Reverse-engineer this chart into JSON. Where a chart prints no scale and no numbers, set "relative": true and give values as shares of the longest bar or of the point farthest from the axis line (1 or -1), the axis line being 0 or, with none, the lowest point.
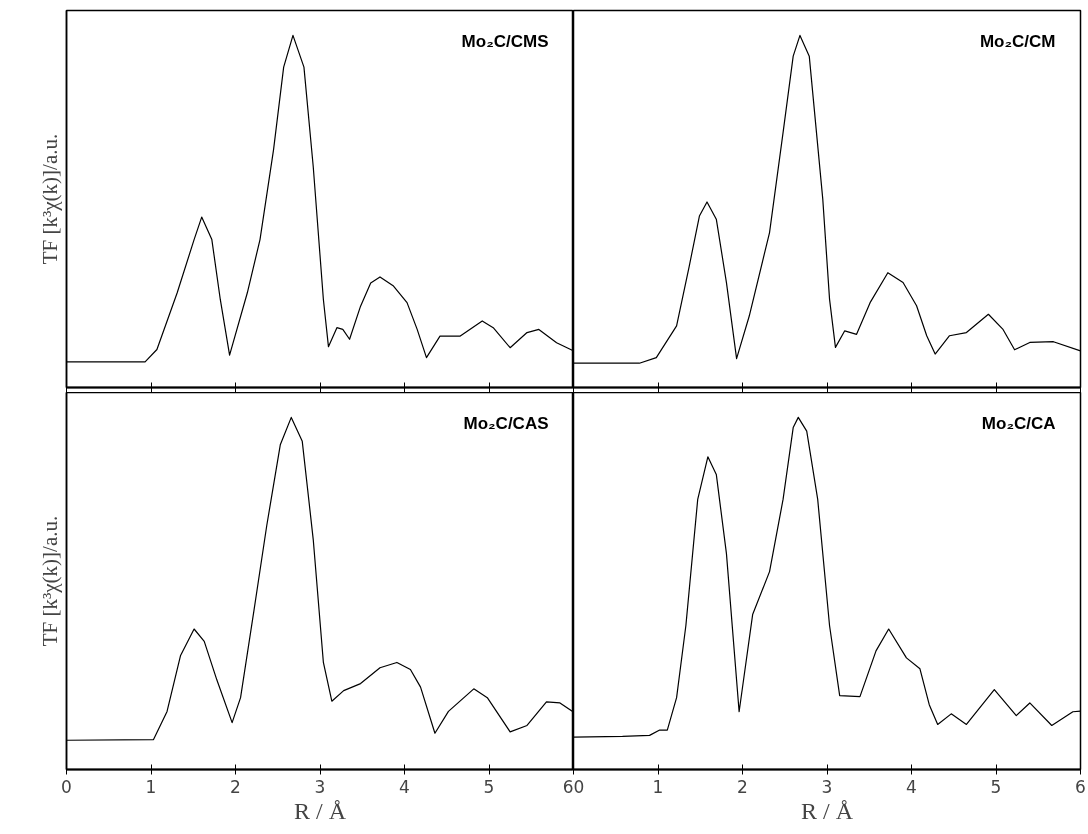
{
  "chart_data": [
    {
      "type": "line",
      "relative": true,
      "xlim": [
        0,
        6
      ],
      "xticks": [
        0,
        1,
        2,
        3,
        4,
        5,
        6
      ],
      "tick_labels": false,
      "ylabel": "TF [k³χ(k)]/a.u.",
      "annotations": [
        "Mo₂C/CMS"
      ],
      "color": "#000000",
      "x": [
        0,
        0.93,
        1.07,
        1.31,
        1.51,
        1.6,
        1.72,
        1.82,
        1.93,
        2.14,
        2.29,
        2.45,
        2.57,
        2.68,
        2.81,
        2.92,
        3.04,
        3.1,
        3.2,
        3.27,
        3.35,
        3.48,
        3.6,
        3.71,
        3.87,
        4.03,
        4.15,
        4.26,
        4.42,
        4.66,
        4.92,
        5.05,
        5.25,
        5.45,
        5.59,
        5.8,
        6.0
      ],
      "values": [
        0.073,
        0.073,
        0.108,
        0.269,
        0.42,
        0.484,
        0.42,
        0.25,
        0.092,
        0.269,
        0.42,
        0.675,
        0.91,
        1.0,
        0.91,
        0.627,
        0.25,
        0.116,
        0.17,
        0.165,
        0.137,
        0.231,
        0.297,
        0.314,
        0.288,
        0.241,
        0.165,
        0.085,
        0.146,
        0.146,
        0.189,
        0.17,
        0.113,
        0.156,
        0.165,
        0.127,
        0.104
      ]
    },
    {
      "type": "line",
      "relative": true,
      "xlim": [
        0,
        6
      ],
      "xticks": [
        0,
        1,
        2,
        3,
        4,
        5,
        6
      ],
      "tick_labels": false,
      "annotations": [
        "Mo₂C/CM"
      ],
      "color": "#000000",
      "x": [
        0,
        0.78,
        0.98,
        1.22,
        1.37,
        1.49,
        1.58,
        1.69,
        1.81,
        1.93,
        2.08,
        2.32,
        2.48,
        2.6,
        2.68,
        2.79,
        2.95,
        3.03,
        3.1,
        3.21,
        3.35,
        3.51,
        3.72,
        3.9,
        4.06,
        4.18,
        4.28,
        4.45,
        4.65,
        4.91,
        5.08,
        5.22,
        5.4,
        5.68,
        6.0
      ],
      "values": [
        0.069,
        0.069,
        0.085,
        0.175,
        0.345,
        0.487,
        0.527,
        0.478,
        0.298,
        0.082,
        0.203,
        0.44,
        0.724,
        0.941,
        1.0,
        0.941,
        0.535,
        0.251,
        0.114,
        0.161,
        0.151,
        0.241,
        0.326,
        0.298,
        0.232,
        0.147,
        0.095,
        0.147,
        0.156,
        0.208,
        0.166,
        0.107,
        0.128,
        0.13,
        0.104
      ]
    },
    {
      "type": "line",
      "relative": true,
      "xlim": [
        0,
        6
      ],
      "xticks": [
        0,
        1,
        2,
        3,
        4,
        5,
        6
      ],
      "tick_labels": "x",
      "xlabel": "R / Å",
      "ylabel": "TF [k³χ(k)]/a.u.",
      "annotations": [
        "Mo₂C/CAS"
      ],
      "color": "#000000",
      "x": [
        0,
        1.03,
        1.19,
        1.35,
        1.51,
        1.63,
        1.78,
        1.96,
        2.06,
        2.22,
        2.37,
        2.53,
        2.66,
        2.79,
        2.92,
        3.04,
        3.14,
        3.28,
        3.48,
        3.71,
        3.91,
        4.07,
        4.19,
        4.36,
        4.52,
        4.82,
        4.98,
        5.25,
        5.45,
        5.68,
        5.84,
        6.0
      ],
      "values": [
        0.083,
        0.085,
        0.165,
        0.324,
        0.399,
        0.364,
        0.254,
        0.133,
        0.204,
        0.454,
        0.693,
        0.922,
        1.0,
        0.932,
        0.653,
        0.304,
        0.194,
        0.224,
        0.244,
        0.289,
        0.304,
        0.284,
        0.234,
        0.103,
        0.165,
        0.229,
        0.204,
        0.107,
        0.125,
        0.192,
        0.189,
        0.163
      ]
    },
    {
      "type": "line",
      "relative": true,
      "xlim": [
        0,
        6
      ],
      "xticks": [
        0,
        1,
        2,
        3,
        4,
        5,
        6
      ],
      "tick_labels": "x",
      "xlabel": "R / Å",
      "annotations": [
        "Mo₂C/CA"
      ],
      "color": "#000000",
      "x": [
        0,
        0.58,
        0.9,
        1.02,
        1.11,
        1.22,
        1.33,
        1.47,
        1.59,
        1.69,
        1.81,
        1.96,
        2.12,
        2.32,
        2.48,
        2.6,
        2.66,
        2.76,
        2.89,
        3.03,
        3.15,
        3.39,
        3.58,
        3.73,
        3.94,
        4.1,
        4.21,
        4.31,
        4.47,
        4.65,
        4.98,
        5.24,
        5.4,
        5.66,
        5.91,
        6.0
      ],
      "values": [
        0.092,
        0.094,
        0.097,
        0.112,
        0.112,
        0.204,
        0.409,
        0.767,
        0.888,
        0.838,
        0.613,
        0.164,
        0.44,
        0.562,
        0.767,
        0.971,
        1.0,
        0.961,
        0.767,
        0.409,
        0.21,
        0.207,
        0.337,
        0.399,
        0.317,
        0.286,
        0.184,
        0.128,
        0.158,
        0.128,
        0.227,
        0.153,
        0.189,
        0.125,
        0.164,
        0.166
      ]
    }
  ]
}
